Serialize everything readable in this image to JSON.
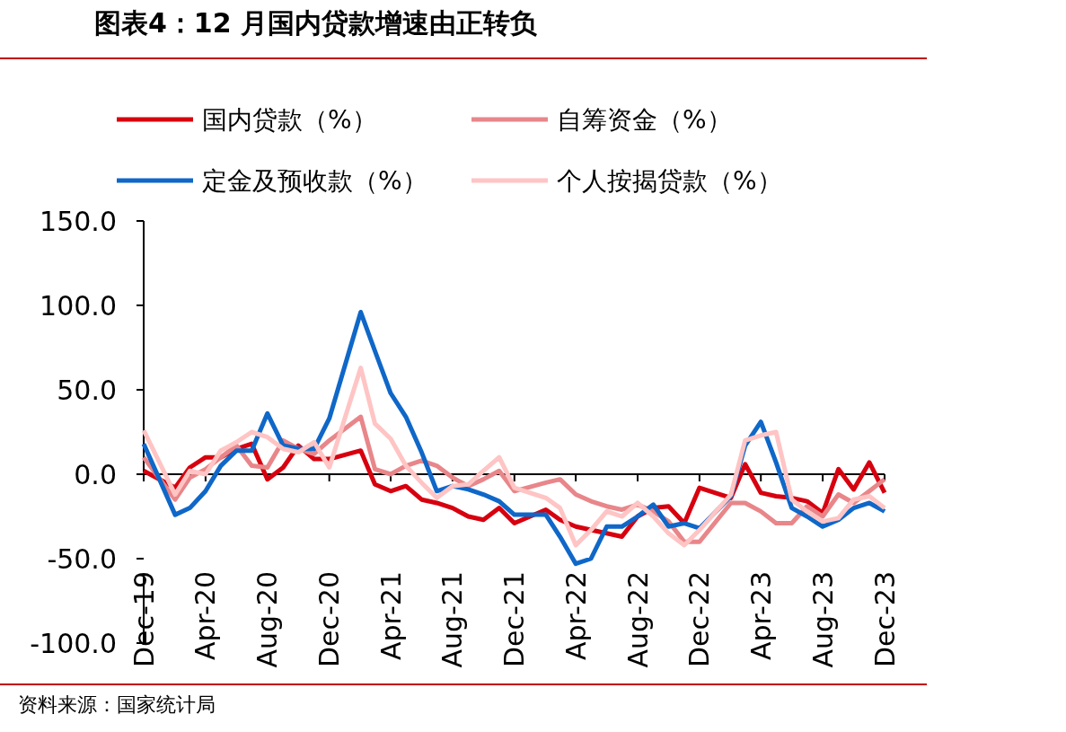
{
  "chart_data": {
    "type": "line",
    "title": "图表4：12 月国内贷款增速由正转负",
    "x": [
      "2019-12",
      "2020-02",
      "2020-03",
      "2020-04",
      "2020-05",
      "2020-06",
      "2020-07",
      "2020-08",
      "2020-09",
      "2020-10",
      "2020-11",
      "2020-12",
      "2021-02",
      "2021-03",
      "2021-04",
      "2021-05",
      "2021-06",
      "2021-07",
      "2021-08",
      "2021-09",
      "2021-10",
      "2021-11",
      "2021-12",
      "2022-02",
      "2022-03",
      "2022-04",
      "2022-05",
      "2022-06",
      "2022-07",
      "2022-08",
      "2022-09",
      "2022-10",
      "2022-11",
      "2022-12",
      "2023-02",
      "2023-03",
      "2023-04",
      "2023-05",
      "2023-06",
      "2023-07",
      "2023-08",
      "2023-09",
      "2023-10",
      "2023-11",
      "2023-12"
    ],
    "series": [
      {
        "name": "国内贷款（%）",
        "color": "#d7000f",
        "values": [
          2,
          -8,
          4,
          10,
          10,
          15,
          18,
          -3,
          4,
          17,
          9,
          9,
          14,
          -6,
          -10,
          -7,
          -15,
          -17,
          -20,
          -25,
          -27,
          -20,
          -29,
          -21,
          -27,
          -31,
          -33,
          -35,
          -37,
          -25,
          -20,
          -19,
          -29,
          -8,
          -14,
          6,
          -11,
          -13,
          -14,
          -16,
          -23,
          3,
          -9,
          7,
          -11
        ]
      },
      {
        "name": "自筹资金（%）",
        "color": "#e8868a",
        "values": [
          10,
          -15,
          -2,
          3,
          10,
          17,
          5,
          4,
          20,
          15,
          12,
          20,
          34,
          3,
          0,
          5,
          8,
          5,
          -2,
          -7,
          -3,
          2,
          -10,
          -5,
          -3,
          -12,
          -16,
          -19,
          -21,
          -18,
          -22,
          -28,
          -40,
          -40,
          -17,
          -17,
          -22,
          -29,
          -29,
          -19,
          -25,
          -12,
          -17,
          -10,
          -3
        ]
      },
      {
        "name": "定金及预收款（%）",
        "color": "#0f67c8",
        "values": [
          18,
          -24,
          -20,
          -10,
          5,
          14,
          14,
          36,
          17,
          15,
          15,
          33,
          96,
          73,
          48,
          34,
          13,
          -10,
          -7,
          -9,
          -12,
          -16,
          -24,
          -24,
          -37,
          -53,
          -50,
          -31,
          -31,
          -25,
          -18,
          -31,
          -29,
          -32,
          -13,
          17,
          31,
          7,
          -20,
          -25,
          -31,
          -27,
          -20,
          -17,
          -22
        ]
      },
      {
        "name": "个人按揭贷款（%）",
        "color": "#ffc4c4",
        "values": [
          26,
          -12,
          2,
          0,
          14,
          19,
          25,
          22,
          15,
          13,
          19,
          4,
          63,
          30,
          21,
          5,
          -5,
          -14,
          -7,
          -6,
          2,
          10,
          -8,
          -14,
          -20,
          -42,
          -33,
          -22,
          -25,
          -17,
          -25,
          -35,
          -42,
          -33,
          -12,
          20,
          23,
          25,
          -15,
          -22,
          -28,
          -26,
          -15,
          -13,
          -20
        ]
      }
    ],
    "xlim": [
      "2019-12",
      "2023-12"
    ],
    "xticks": [
      {
        "value": "2019-12",
        "label": "Dec-19"
      },
      {
        "value": "2020-04",
        "label": "Apr-20"
      },
      {
        "value": "2020-08",
        "label": "Aug-20"
      },
      {
        "value": "2020-12",
        "label": "Dec-20"
      },
      {
        "value": "2021-04",
        "label": "Apr-21"
      },
      {
        "value": "2021-08",
        "label": "Aug-21"
      },
      {
        "value": "2021-12",
        "label": "Dec-21"
      },
      {
        "value": "2022-04",
        "label": "Apr-22"
      },
      {
        "value": "2022-08",
        "label": "Aug-22"
      },
      {
        "value": "2022-12",
        "label": "Dec-22"
      },
      {
        "value": "2023-04",
        "label": "Apr-23"
      },
      {
        "value": "2023-08",
        "label": "Aug-23"
      },
      {
        "value": "2023-12",
        "label": "Dec-23"
      }
    ],
    "ylim": [
      -100,
      150
    ],
    "yticks": [
      {
        "value": -100,
        "label": "-100.0"
      },
      {
        "value": -50,
        "label": "-50.0"
      },
      {
        "value": 0,
        "label": "0.0"
      },
      {
        "value": 50,
        "label": "50.0"
      },
      {
        "value": 100,
        "label": "100.0"
      },
      {
        "value": 150,
        "label": "150.0"
      }
    ],
    "legend": "top",
    "annotations": [
      "资料来源：国家统计局"
    ]
  }
}
